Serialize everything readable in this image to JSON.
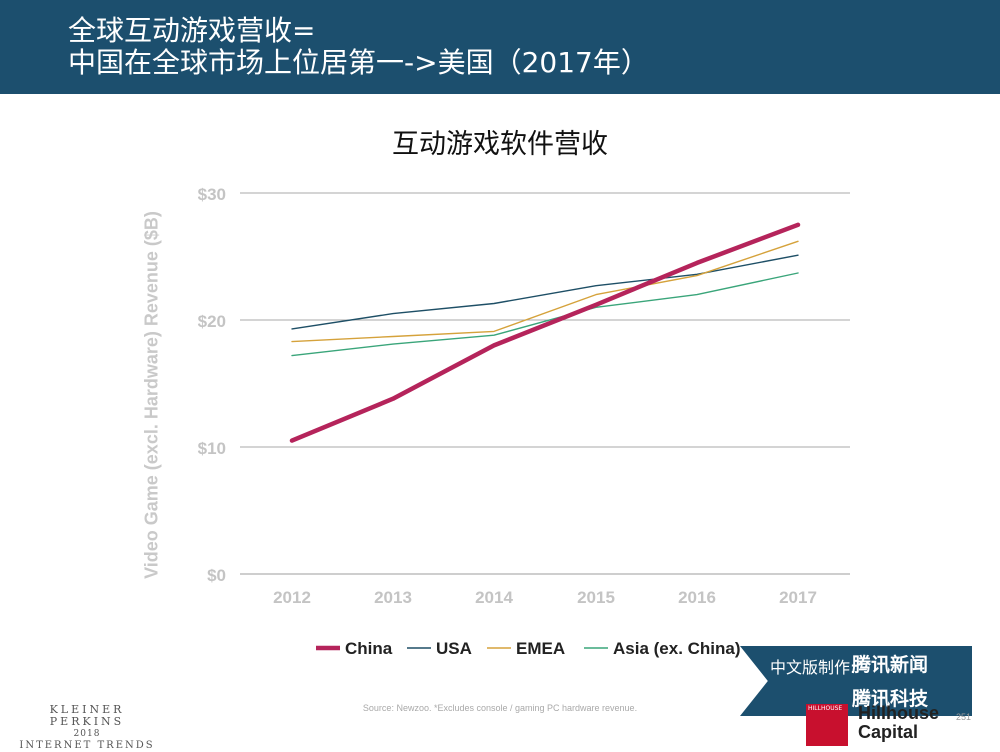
{
  "header": {
    "line1": "全球互动游戏营收=",
    "line2": "中国在全球市场上位居第一->美国（2017年）",
    "bg_color": "#1c4f6e"
  },
  "chart_data": {
    "type": "line",
    "title": "互动游戏软件营收",
    "ylabel": "Video Game (excl. Hardware) Revenue ($B)",
    "xlabel": "",
    "x": [
      "2012",
      "2013",
      "2014",
      "2015",
      "2016",
      "2017"
    ],
    "ylim": [
      0,
      30
    ],
    "yticks": [
      0,
      10,
      20,
      30
    ],
    "ytick_labels": [
      "$0",
      "$10",
      "$20",
      "$30"
    ],
    "grid": true,
    "legend_position": "bottom",
    "series": [
      {
        "name": "China",
        "color": "#b5245b",
        "values": [
          10.5,
          13.8,
          18.0,
          21.2,
          24.5,
          27.5
        ],
        "emphasis": true
      },
      {
        "name": "USA",
        "color": "#1e4f66",
        "values": [
          19.3,
          20.5,
          21.3,
          22.7,
          23.6,
          25.1
        ]
      },
      {
        "name": "EMEA",
        "color": "#d5a23b",
        "values": [
          18.3,
          18.7,
          19.1,
          22.0,
          23.5,
          26.2
        ]
      },
      {
        "name": "Asia (ex. China)",
        "color": "#3aa57a",
        "values": [
          17.2,
          18.1,
          18.8,
          21.0,
          22.0,
          23.7
        ]
      }
    ]
  },
  "footer": {
    "source": "Source: Newzoo. *Excludes console / gaming PC hardware revenue.",
    "kp_line1": "KLEINER PERKINS",
    "kp_line2": "2018",
    "kp_line3": "INTERNET TRENDS",
    "page_number": "251"
  },
  "banner": {
    "credit": "中文版制作:",
    "tencent_news": "腾讯新闻",
    "tencent_tech": "腾讯科技"
  },
  "hillhouse": {
    "logo_text": "HILLHOUSE",
    "name_line1": "Hillhouse",
    "name_line2": "Capital"
  }
}
